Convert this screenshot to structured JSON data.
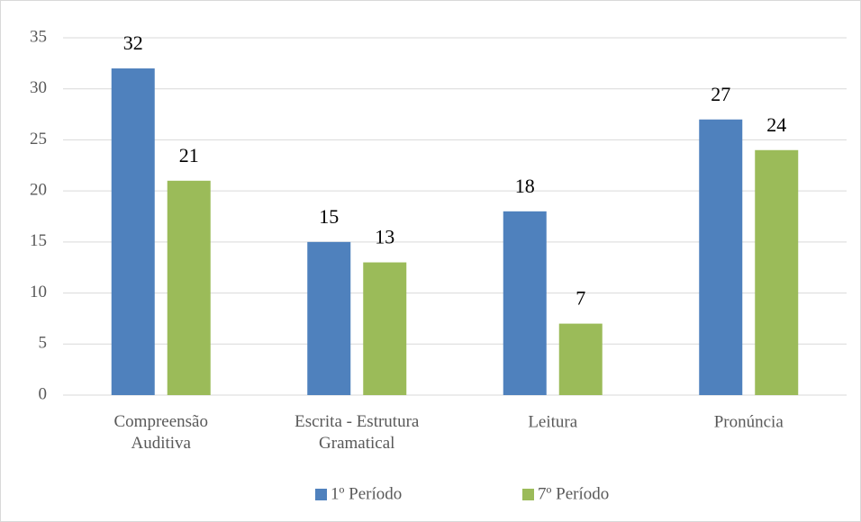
{
  "chart_data": {
    "type": "bar",
    "categories": [
      "Compreensão\nAuditiva",
      "Escrita - Estrutura\nGramatical",
      "Leitura",
      "Pronúncia"
    ],
    "series": [
      {
        "name": "1º Período",
        "color": "#4f81bd",
        "values": [
          32,
          15,
          18,
          27
        ]
      },
      {
        "name": "7º  Período",
        "color": "#9bbb59",
        "values": [
          21,
          13,
          7,
          24
        ]
      }
    ],
    "ylim": [
      0,
      35
    ],
    "yticks": [
      0,
      5,
      10,
      15,
      20,
      25,
      30,
      35
    ],
    "grid": true,
    "legend": "bottom"
  }
}
